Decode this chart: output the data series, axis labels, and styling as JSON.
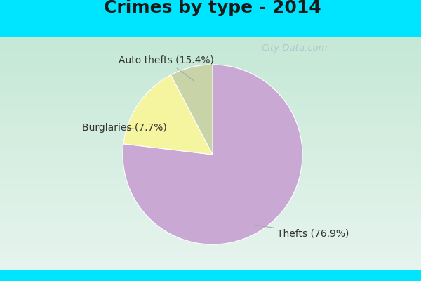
{
  "title": "Crimes by type - 2014",
  "slices": [
    {
      "label": "Thefts",
      "pct": 76.9,
      "color": "#c9a8d4"
    },
    {
      "label": "Auto thefts",
      "pct": 15.4,
      "color": "#f5f5a0"
    },
    {
      "label": "Burglaries",
      "pct": 7.7,
      "color": "#c8d4a8"
    }
  ],
  "bg_color_top": "#00e5ff",
  "bg_color_main_top": "#e8f5ee",
  "bg_color_main_bottom": "#c8e8d8",
  "title_fontsize": 18,
  "label_fontsize": 10,
  "watermark": "City-Data.com",
  "startangle": 90,
  "label_color": "#333333",
  "arrow_color": "#aaaaaa"
}
